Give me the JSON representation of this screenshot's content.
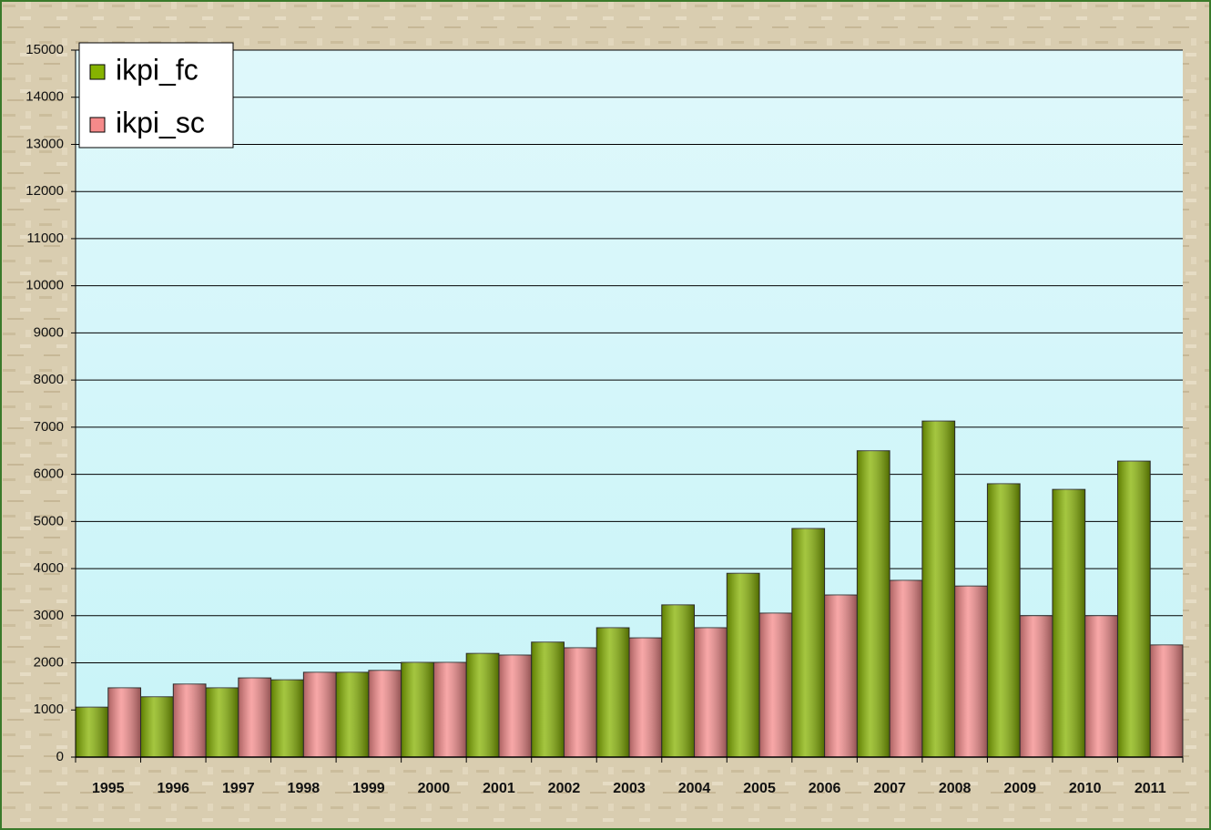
{
  "chart_data": {
    "type": "bar",
    "categories": [
      "1995",
      "1996",
      "1997",
      "1998",
      "1999",
      "2000",
      "2001",
      "2002",
      "2003",
      "2004",
      "2005",
      "2006",
      "2007",
      "2008",
      "2009",
      "2010",
      "2011"
    ],
    "series": [
      {
        "name": "ikpi_fc",
        "color": "#86b300",
        "values": [
          1060,
          1280,
          1470,
          1640,
          1800,
          2010,
          2200,
          2440,
          2745,
          3230,
          3900,
          4850,
          6500,
          7130,
          5800,
          5680,
          6280
        ]
      },
      {
        "name": "ikpi_sc",
        "color": "#f58a8a",
        "values": [
          1470,
          1550,
          1680,
          1800,
          1840,
          2010,
          2165,
          2320,
          2530,
          2745,
          3055,
          3440,
          3750,
          3630,
          3000,
          3000,
          2380
        ]
      }
    ],
    "ylim": [
      0,
      15000
    ],
    "yticks": [
      0,
      1000,
      2000,
      3000,
      4000,
      5000,
      6000,
      7000,
      8000,
      9000,
      10000,
      11000,
      12000,
      13000,
      14000,
      15000
    ],
    "grid": true,
    "legend": "top-left"
  }
}
